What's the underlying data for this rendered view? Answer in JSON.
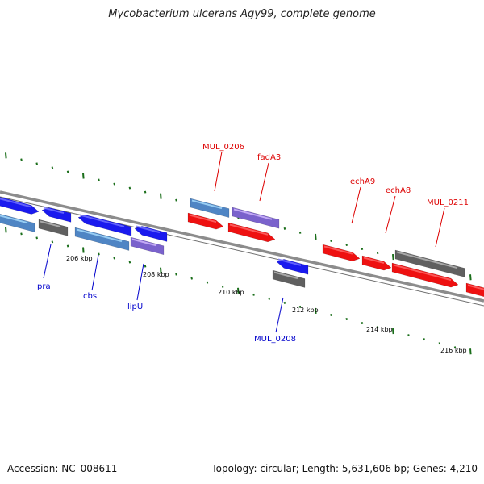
{
  "title": "Mycobacterium ulcerans Agy99, complete genome",
  "footer": {
    "accession": "Accession: NC_008611",
    "summary": "Topology: circular; Length: 5,631,606 bp; Genes: 4,210"
  },
  "colors": {
    "backbone": "#8c8c8c",
    "tick_major": "#1a6e1a",
    "tick_minor": "#1a6e1a",
    "gene_red": "#ee1111",
    "gene_blue": "#1a1aee",
    "gene_steel": "#4f85c4",
    "gene_purple": "#7a62cc",
    "gene_gray": "#606060",
    "label_red": "#dd0000",
    "label_blue": "#0000cc"
  },
  "ticks": [
    {
      "label": "206 kbp"
    },
    {
      "label": "208 kbp"
    },
    {
      "label": "210 kbp"
    },
    {
      "label": "212 kbp"
    },
    {
      "label": "214 kbp"
    },
    {
      "label": "216 kbp"
    }
  ],
  "gene_labels": [
    {
      "name": "MUL_0206",
      "strand": "forward"
    },
    {
      "name": "fadA3",
      "strand": "forward"
    },
    {
      "name": "echA9",
      "strand": "forward"
    },
    {
      "name": "echA8",
      "strand": "forward"
    },
    {
      "name": "MUL_0211",
      "strand": "forward"
    },
    {
      "name": "pra",
      "strand": "reverse"
    },
    {
      "name": "cbs",
      "strand": "reverse"
    },
    {
      "name": "lipU",
      "strand": "reverse"
    },
    {
      "name": "MUL_0208",
      "strand": "reverse"
    }
  ]
}
